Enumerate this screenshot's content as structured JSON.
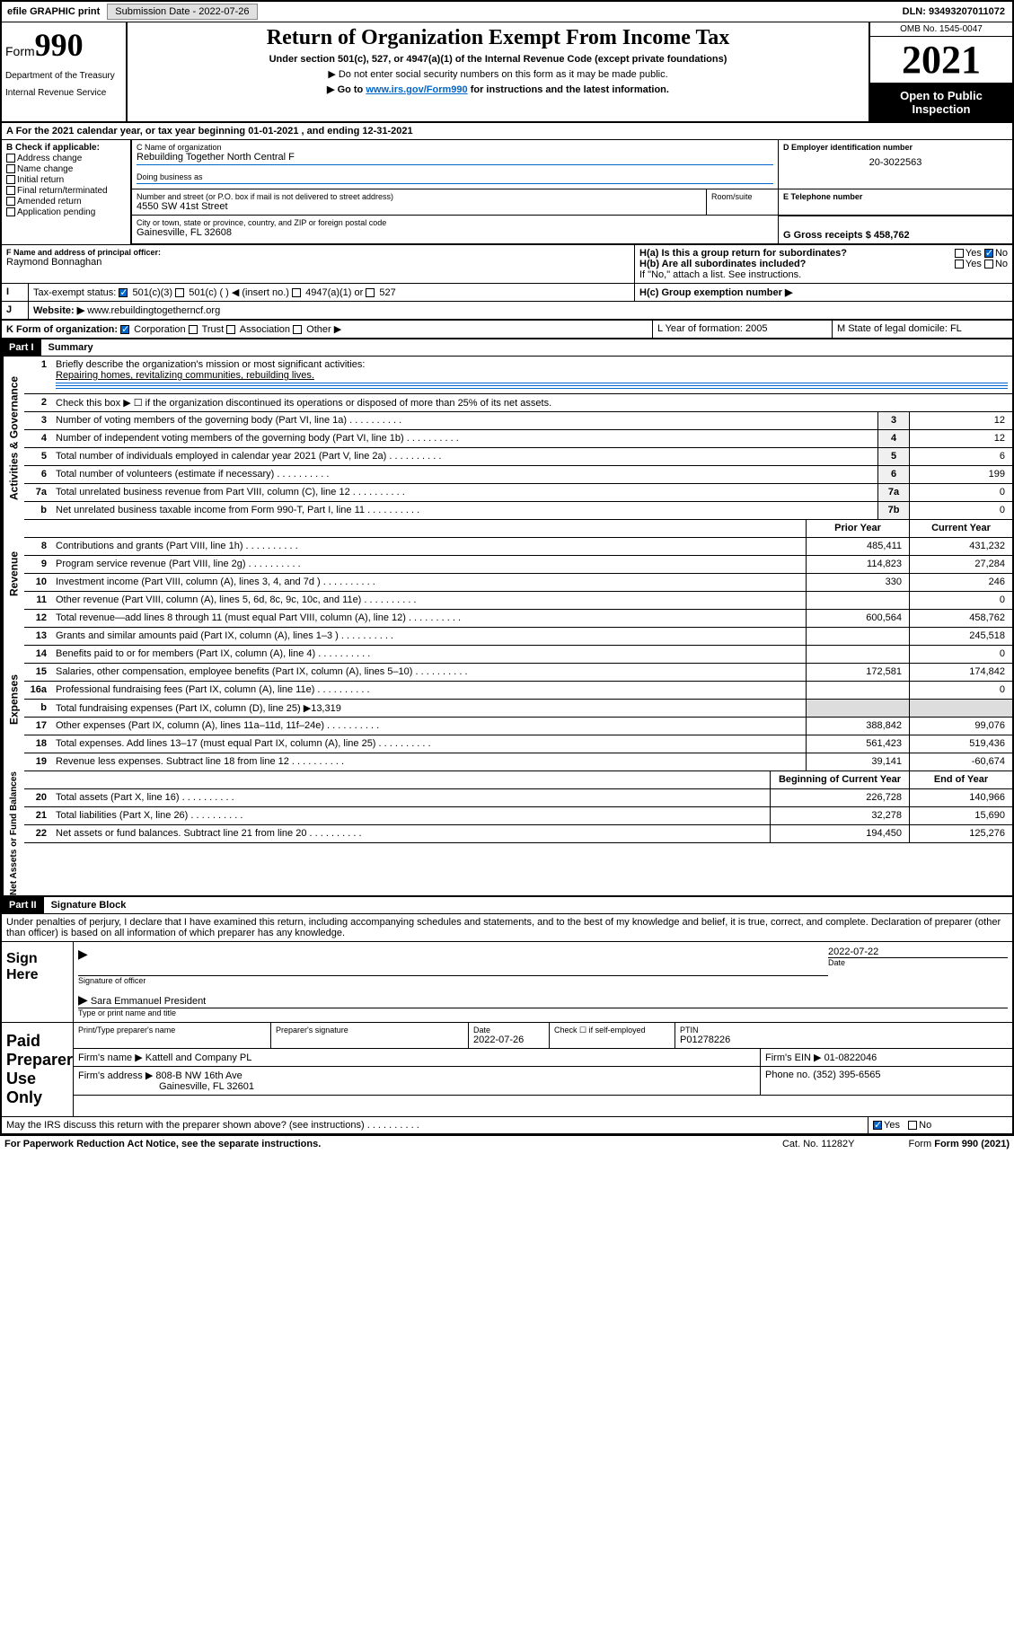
{
  "topbar": {
    "efile": "efile GRAPHIC print",
    "sub_label": "Submission Date - 2022-07-26",
    "dln": "DLN: 93493207011072"
  },
  "header": {
    "form_label": "Form",
    "form_num": "990",
    "dept": "Department of the Treasury",
    "irs": "Internal Revenue Service",
    "title": "Return of Organization Exempt From Income Tax",
    "subtitle": "Under section 501(c), 527, or 4947(a)(1) of the Internal Revenue Code (except private foundations)",
    "note1": "▶ Do not enter social security numbers on this form as it may be made public.",
    "note2_pre": "▶ Go to ",
    "note2_link": "www.irs.gov/Form990",
    "note2_post": " for instructions and the latest information.",
    "omb": "OMB No. 1545-0047",
    "year": "2021",
    "inspect": "Open to Public Inspection"
  },
  "section_a": {
    "text": "A For the 2021 calendar year, or tax year beginning 01-01-2021   , and ending 12-31-2021"
  },
  "section_b": {
    "label": "B Check if applicable:",
    "items": [
      "Address change",
      "Name change",
      "Initial return",
      "Final return/terminated",
      "Amended return",
      "Application pending"
    ]
  },
  "section_c": {
    "label": "C Name of organization",
    "name": "Rebuilding Together North Central F",
    "dba_label": "Doing business as",
    "addr_label": "Number and street (or P.O. box if mail is not delivered to street address)",
    "room_label": "Room/suite",
    "addr": "4550 SW 41st Street",
    "city_label": "City or town, state or province, country, and ZIP or foreign postal code",
    "city": "Gainesville, FL  32608"
  },
  "section_d": {
    "label": "D Employer identification number",
    "ein": "20-3022563"
  },
  "section_e": {
    "label": "E Telephone number"
  },
  "section_g": {
    "label": "G Gross receipts $ 458,762"
  },
  "section_f": {
    "label": "F Name and address of principal officer:",
    "name": "Raymond Bonnaghan"
  },
  "section_h": {
    "ha": "H(a)  Is this a group return for subordinates?",
    "hb": "H(b)  Are all subordinates included?",
    "hb_note": "If \"No,\" attach a list. See instructions.",
    "hc": "H(c)  Group exemption number ▶",
    "yes": "Yes",
    "no": "No"
  },
  "section_i": {
    "label": "Tax-exempt status:",
    "opts": [
      "501(c)(3)",
      "501(c) (  ) ◀ (insert no.)",
      "4947(a)(1) or",
      "527"
    ]
  },
  "section_j": {
    "label": "Website: ▶",
    "url": "www.rebuildingtogetherncf.org"
  },
  "section_k": {
    "label": "K Form of organization:",
    "opts": [
      "Corporation",
      "Trust",
      "Association",
      "Other ▶"
    ]
  },
  "section_l": {
    "label": "L Year of formation: 2005"
  },
  "section_m": {
    "label": "M State of legal domicile: FL"
  },
  "part1": {
    "num": "Part I",
    "title": "Summary",
    "line1": "Briefly describe the organization's mission or most significant activities:",
    "mission": "Repairing homes, revitalizing communities, rebuilding lives.",
    "line2": "Check this box ▶ ☐ if the organization discontinued its operations or disposed of more than 25% of its net assets.",
    "sidebar_gov": "Activities & Governance",
    "sidebar_rev": "Revenue",
    "sidebar_exp": "Expenses",
    "sidebar_net": "Net Assets or Fund Balances",
    "col_prior": "Prior Year",
    "col_curr": "Current Year",
    "col_beg": "Beginning of Current Year",
    "col_end": "End of Year",
    "rows_gov": [
      {
        "n": "3",
        "t": "Number of voting members of the governing body (Part VI, line 1a)",
        "box": "3",
        "v": "12"
      },
      {
        "n": "4",
        "t": "Number of independent voting members of the governing body (Part VI, line 1b)",
        "box": "4",
        "v": "12"
      },
      {
        "n": "5",
        "t": "Total number of individuals employed in calendar year 2021 (Part V, line 2a)",
        "box": "5",
        "v": "6"
      },
      {
        "n": "6",
        "t": "Total number of volunteers (estimate if necessary)",
        "box": "6",
        "v": "199"
      },
      {
        "n": "7a",
        "t": "Total unrelated business revenue from Part VIII, column (C), line 12",
        "box": "7a",
        "v": "0"
      },
      {
        "n": "b",
        "t": "Net unrelated business taxable income from Form 990-T, Part I, line 11",
        "box": "7b",
        "v": "0"
      }
    ],
    "rows_rev": [
      {
        "n": "8",
        "t": "Contributions and grants (Part VIII, line 1h)",
        "p": "485,411",
        "c": "431,232"
      },
      {
        "n": "9",
        "t": "Program service revenue (Part VIII, line 2g)",
        "p": "114,823",
        "c": "27,284"
      },
      {
        "n": "10",
        "t": "Investment income (Part VIII, column (A), lines 3, 4, and 7d )",
        "p": "330",
        "c": "246"
      },
      {
        "n": "11",
        "t": "Other revenue (Part VIII, column (A), lines 5, 6d, 8c, 9c, 10c, and 11e)",
        "p": "",
        "c": "0"
      },
      {
        "n": "12",
        "t": "Total revenue—add lines 8 through 11 (must equal Part VIII, column (A), line 12)",
        "p": "600,564",
        "c": "458,762"
      }
    ],
    "rows_exp": [
      {
        "n": "13",
        "t": "Grants and similar amounts paid (Part IX, column (A), lines 1–3 )",
        "p": "",
        "c": "245,518"
      },
      {
        "n": "14",
        "t": "Benefits paid to or for members (Part IX, column (A), line 4)",
        "p": "",
        "c": "0"
      },
      {
        "n": "15",
        "t": "Salaries, other compensation, employee benefits (Part IX, column (A), lines 5–10)",
        "p": "172,581",
        "c": "174,842"
      },
      {
        "n": "16a",
        "t": "Professional fundraising fees (Part IX, column (A), line 11e)",
        "p": "",
        "c": "0"
      },
      {
        "n": "b",
        "t": "Total fundraising expenses (Part IX, column (D), line 25) ▶13,319",
        "p": "",
        "c": "",
        "shaded": true
      },
      {
        "n": "17",
        "t": "Other expenses (Part IX, column (A), lines 11a–11d, 11f–24e)",
        "p": "388,842",
        "c": "99,076"
      },
      {
        "n": "18",
        "t": "Total expenses. Add lines 13–17 (must equal Part IX, column (A), line 25)",
        "p": "561,423",
        "c": "519,436"
      },
      {
        "n": "19",
        "t": "Revenue less expenses. Subtract line 18 from line 12",
        "p": "39,141",
        "c": "-60,674"
      }
    ],
    "rows_net": [
      {
        "n": "20",
        "t": "Total assets (Part X, line 16)",
        "p": "226,728",
        "c": "140,966"
      },
      {
        "n": "21",
        "t": "Total liabilities (Part X, line 26)",
        "p": "32,278",
        "c": "15,690"
      },
      {
        "n": "22",
        "t": "Net assets or fund balances. Subtract line 21 from line 20",
        "p": "194,450",
        "c": "125,276"
      }
    ]
  },
  "part2": {
    "num": "Part II",
    "title": "Signature Block",
    "decl": "Under penalties of perjury, I declare that I have examined this return, including accompanying schedules and statements, and to the best of my knowledge and belief, it is true, correct, and complete. Declaration of preparer (other than officer) is based on all information of which preparer has any knowledge.",
    "sign_here": "Sign Here",
    "sig_officer": "Signature of officer",
    "sig_date": "2022-07-22",
    "date_label": "Date",
    "officer_name": "Sara Emmanuel President",
    "officer_type": "Type or print name and title",
    "paid_prep": "Paid Preparer Use Only",
    "prep_name_label": "Print/Type preparer's name",
    "prep_sig_label": "Preparer's signature",
    "prep_date": "2022-07-26",
    "check_label": "Check ☐ if self-employed",
    "ptin_label": "PTIN",
    "ptin": "P01278226",
    "firm_name_label": "Firm's name    ▶",
    "firm_name": "Kattell and Company PL",
    "firm_ein_label": "Firm's EIN ▶",
    "firm_ein": "01-0822046",
    "firm_addr_label": "Firm's address ▶",
    "firm_addr": "808-B NW 16th Ave",
    "firm_city": "Gainesville, FL  32601",
    "phone_label": "Phone no.",
    "phone": "(352) 395-6565",
    "discuss": "May the IRS discuss this return with the preparer shown above? (see instructions)",
    "yes": "Yes",
    "no": "No"
  },
  "footer": {
    "paperwork": "For Paperwork Reduction Act Notice, see the separate instructions.",
    "cat": "Cat. No. 11282Y",
    "form": "Form 990 (2021)"
  }
}
